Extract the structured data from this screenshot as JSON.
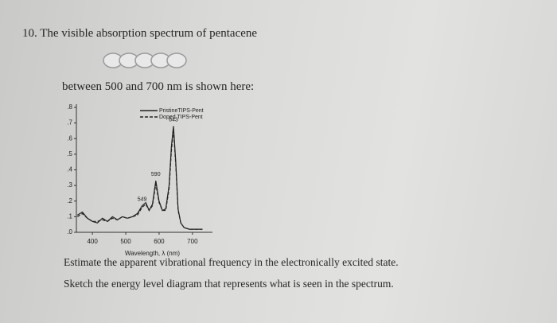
{
  "question": {
    "number": "10.",
    "text": "The visible absorption spectrum of pentacene"
  },
  "intro": "between 500 and 700 nm is shown here:",
  "chart_data": {
    "type": "line",
    "x_label": "Wavelength, λ (nm)",
    "xlim": [
      352,
      760
    ],
    "xticks": [
      400,
      500,
      600,
      700
    ],
    "ylim": [
      0,
      0.8
    ],
    "yticks": [
      {
        "value": 0,
        "label": ".0"
      },
      {
        "value": 0.1,
        "label": ".1"
      },
      {
        "value": 0.2,
        "label": ".2"
      },
      {
        "value": 0.3,
        "label": ".3"
      },
      {
        "value": 0.4,
        "label": ".4"
      },
      {
        "value": 0.5,
        "label": ".5"
      },
      {
        "value": 0.6,
        "label": ".6"
      },
      {
        "value": 0.7,
        "label": ".7"
      },
      {
        "value": 0.8,
        "label": ".8"
      }
    ],
    "x": [
      355,
      370,
      385,
      400,
      415,
      430,
      445,
      460,
      475,
      490,
      505,
      520,
      535,
      549,
      560,
      570,
      580,
      590,
      600,
      610,
      620,
      630,
      637,
      643,
      650,
      657,
      665,
      675,
      690,
      710,
      730
    ],
    "series": [
      {
        "name": "PristineTIPS-Pent",
        "color": "#222222",
        "dash": "none",
        "values": [
          0.11,
          0.13,
          0.09,
          0.07,
          0.06,
          0.09,
          0.07,
          0.1,
          0.08,
          0.1,
          0.09,
          0.1,
          0.12,
          0.17,
          0.19,
          0.14,
          0.18,
          0.33,
          0.2,
          0.14,
          0.15,
          0.3,
          0.55,
          0.68,
          0.45,
          0.15,
          0.06,
          0.03,
          0.02,
          0.02,
          0.02
        ]
      },
      {
        "name": "Doped TIPS-Pent",
        "color": "#222222",
        "dash": "4 2",
        "values": [
          0.1,
          0.12,
          0.09,
          0.07,
          0.07,
          0.08,
          0.07,
          0.09,
          0.08,
          0.1,
          0.09,
          0.1,
          0.11,
          0.16,
          0.18,
          0.14,
          0.17,
          0.31,
          0.19,
          0.14,
          0.14,
          0.28,
          0.52,
          0.66,
          0.43,
          0.14,
          0.06,
          0.03,
          0.02,
          0.02,
          0.02
        ]
      }
    ],
    "annotations": [
      {
        "text": "643",
        "x": 643,
        "y": 0.68
      },
      {
        "text": "590",
        "x": 590,
        "y": 0.33
      },
      {
        "text": "549",
        "x": 549,
        "y": 0.17
      }
    ]
  },
  "prompts": [
    "Estimate the apparent vibrational frequency in the electronically excited state.",
    "Sketch the energy level diagram that represents what is seen in the spectrum."
  ]
}
